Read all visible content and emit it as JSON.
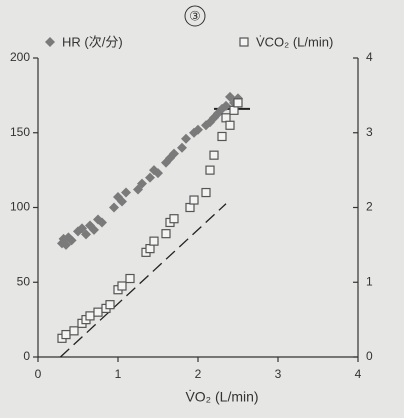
{
  "chart_data": {
    "type": "scatter",
    "title": "③",
    "xlabel": "V̇O₂ (L/min)",
    "xlim": [
      0,
      4
    ],
    "xticks": [
      0,
      1,
      2,
      3,
      4
    ],
    "ylim": [
      0,
      200
    ],
    "yticks": [
      0,
      50,
      100,
      150,
      200
    ],
    "y2lim": [
      0,
      4
    ],
    "y2ticks": [
      0,
      1,
      2,
      3,
      4
    ],
    "series": [
      {
        "name": "HR (次/分)",
        "marker": "diamond",
        "color": "#7a7a7a",
        "x": [
          0.3,
          0.32,
          0.35,
          0.38,
          0.42,
          0.5,
          0.55,
          0.6,
          0.65,
          0.7,
          0.75,
          0.8,
          0.95,
          1.0,
          1.05,
          1.1,
          1.25,
          1.3,
          1.4,
          1.45,
          1.5,
          1.6,
          1.65,
          1.7,
          1.8,
          1.85,
          1.95,
          2.0,
          2.1,
          2.15,
          2.2,
          2.25,
          2.3,
          2.35,
          2.4,
          2.45,
          2.5
        ],
        "values": [
          76,
          79,
          75,
          80,
          78,
          84,
          86,
          82,
          88,
          85,
          92,
          90,
          100,
          107,
          104,
          110,
          112,
          116,
          120,
          125,
          123,
          130,
          133,
          136,
          140,
          146,
          150,
          152,
          155,
          157,
          160,
          163,
          166,
          168,
          174,
          170,
          173
        ]
      },
      {
        "name": "V̇CO₂ (L/min)",
        "marker": "square",
        "color": "#555555",
        "axis": "y2",
        "x": [
          0.3,
          0.35,
          0.45,
          0.55,
          0.6,
          0.65,
          0.75,
          0.85,
          0.9,
          1.0,
          1.05,
          1.15,
          1.35,
          1.4,
          1.45,
          1.6,
          1.65,
          1.7,
          1.9,
          1.95,
          2.1,
          2.15,
          2.2,
          2.3,
          2.35,
          2.4,
          2.45,
          2.5
        ],
        "values": [
          0.25,
          0.3,
          0.35,
          0.45,
          0.5,
          0.55,
          0.6,
          0.65,
          0.7,
          0.9,
          0.95,
          1.05,
          1.4,
          1.45,
          1.55,
          1.65,
          1.8,
          1.85,
          2.0,
          2.1,
          2.2,
          2.5,
          2.7,
          2.95,
          3.2,
          3.1,
          3.3,
          3.4
        ]
      }
    ],
    "reference_lines": [
      {
        "style": "dashed",
        "axis": "y2",
        "x": [
          0.28,
          2.35
        ],
        "values": [
          0,
          2.05
        ]
      },
      {
        "style": "solid",
        "axis": "y",
        "x": [
          2.2,
          2.65
        ],
        "values": [
          166,
          166
        ]
      }
    ]
  }
}
